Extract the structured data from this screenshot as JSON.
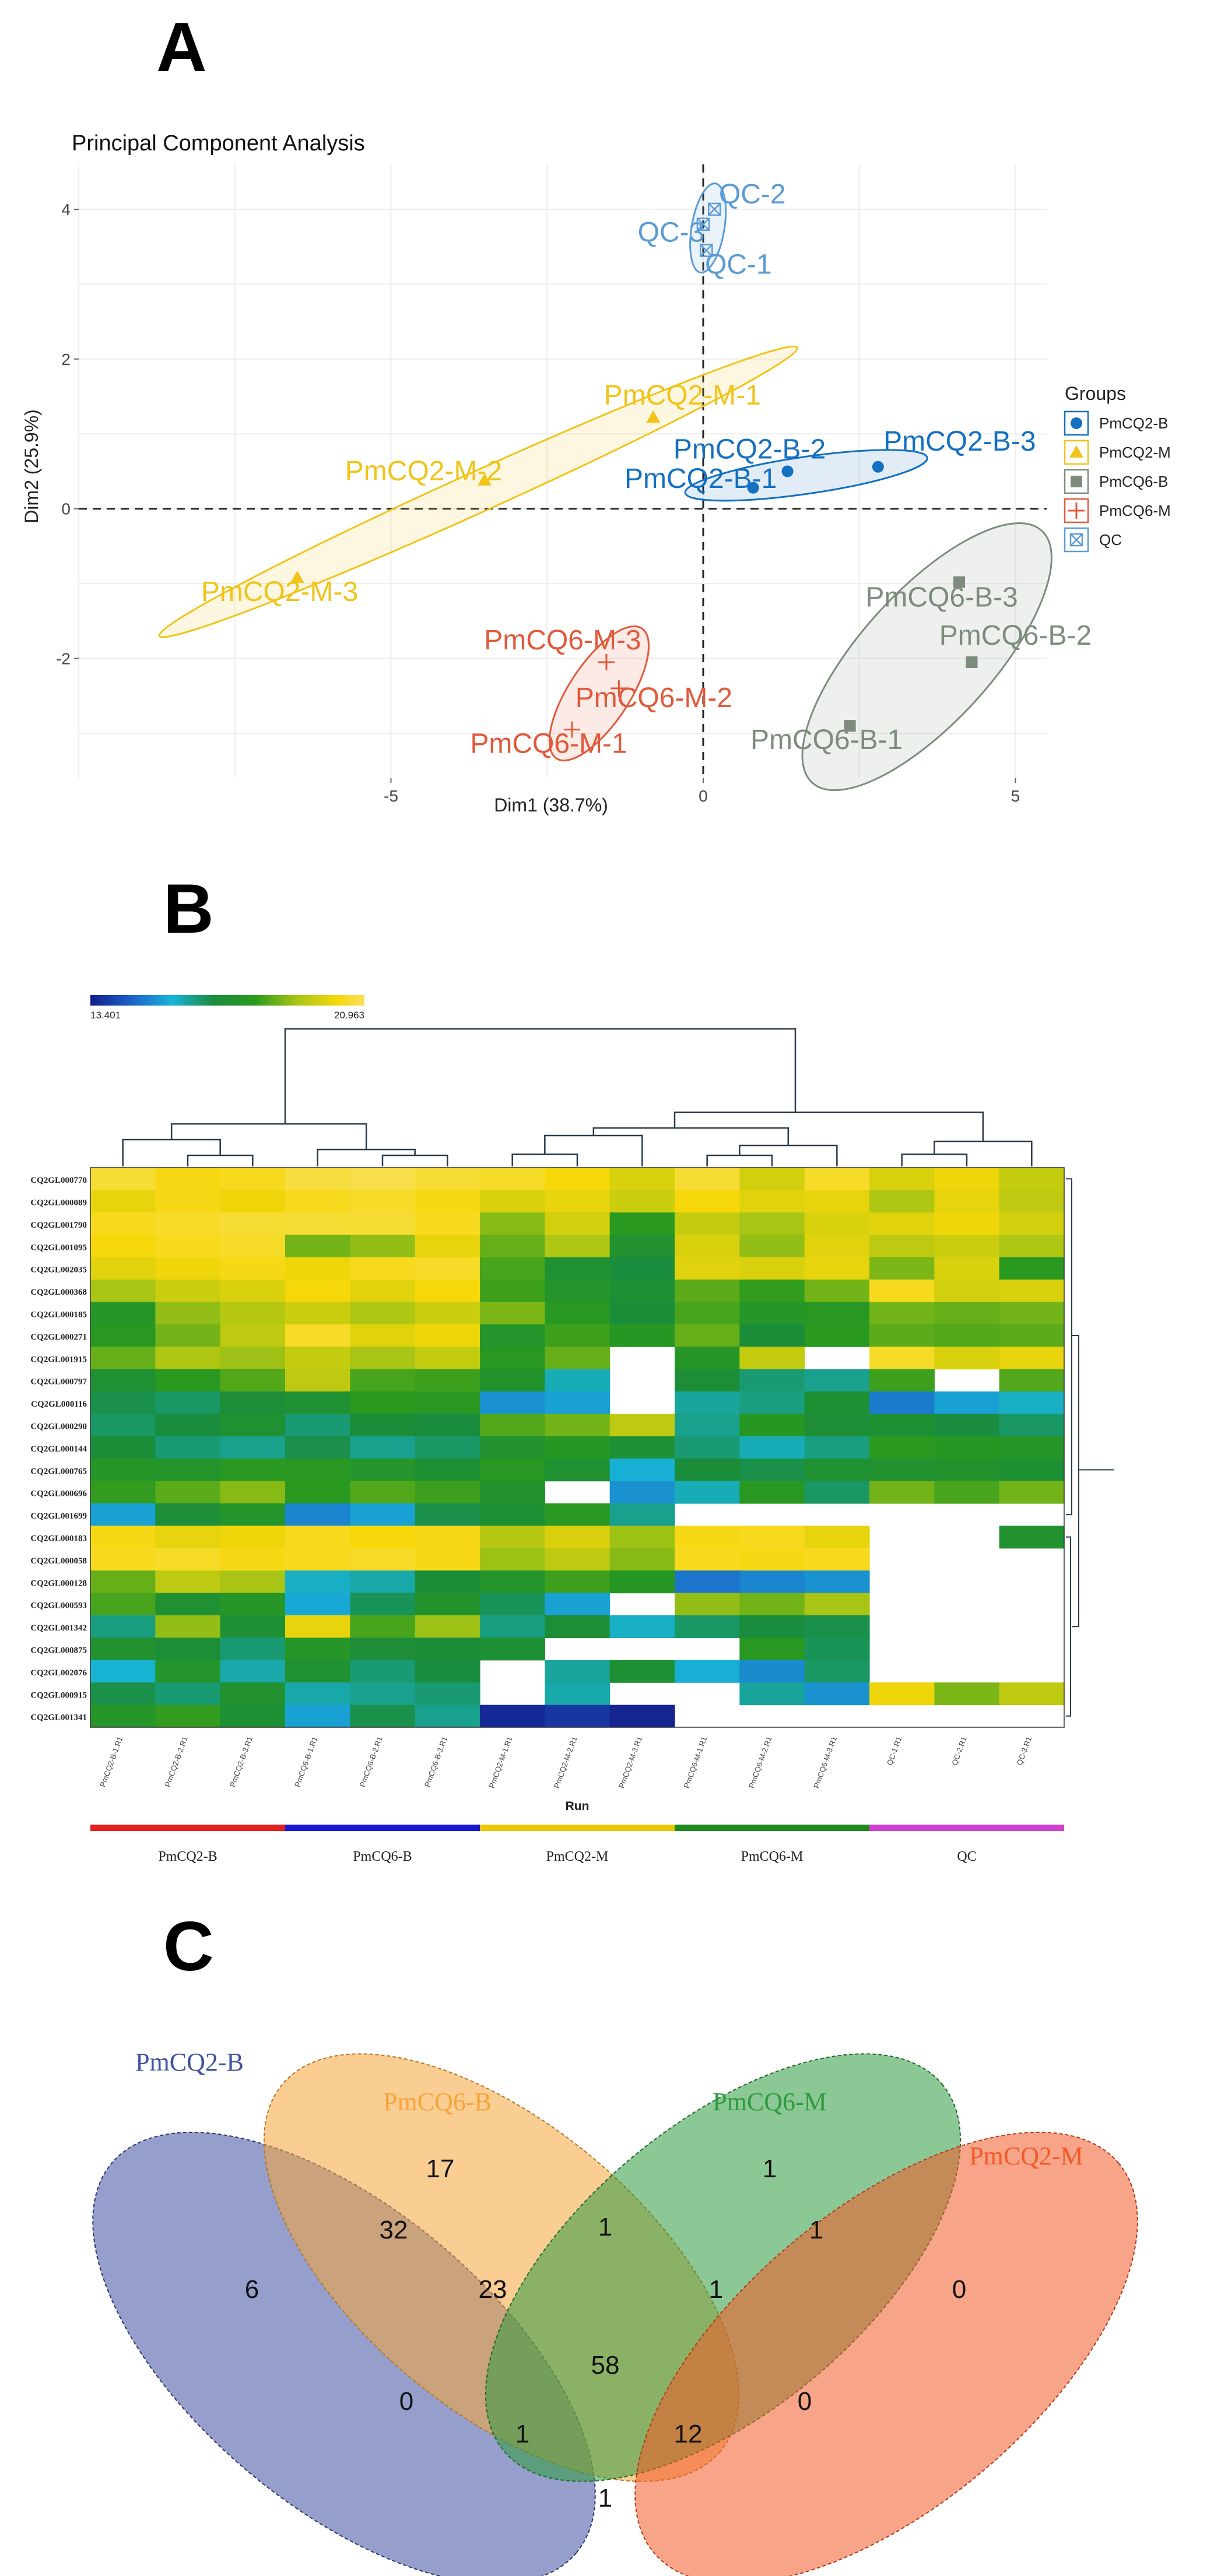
{
  "panel_letters": {
    "a": "A",
    "b": "B",
    "c": "C"
  },
  "chart_data": [
    {
      "type": "scatter",
      "title": "Principal Component Analysis",
      "xlabel": "Dim1 (38.7%)",
      "ylabel": "Dim2 (25.9%)",
      "xlim": [
        -10,
        5.5
      ],
      "ylim": [
        -3.6,
        4.6
      ],
      "xticks": [
        -5,
        0,
        5
      ],
      "yticks": [
        -2,
        0,
        2,
        4
      ],
      "legend_title": "Groups",
      "legend_position": "right",
      "series": [
        {
          "name": "PmCQ2-B",
          "color": "#1470C0",
          "marker": "circle",
          "points": [
            {
              "label": "PmCQ2-B-1",
              "x": 0.8,
              "y": 0.28
            },
            {
              "label": "PmCQ2-B-2",
              "x": 1.35,
              "y": 0.5
            },
            {
              "label": "PmCQ2-B-3",
              "x": 2.8,
              "y": 0.56
            }
          ]
        },
        {
          "name": "PmCQ2-M",
          "color": "#F0C419",
          "marker": "triangle",
          "points": [
            {
              "label": "PmCQ2-M-1",
              "x": -0.8,
              "y": 1.22
            },
            {
              "label": "PmCQ2-M-2",
              "x": -3.5,
              "y": 0.38
            },
            {
              "label": "PmCQ2-M-3",
              "x": -6.5,
              "y": -0.92
            }
          ]
        },
        {
          "name": "PmCQ6-B",
          "color": "#7D8C7D",
          "marker": "square",
          "points": [
            {
              "label": "PmCQ6-B-1",
              "x": 2.35,
              "y": -2.9
            },
            {
              "label": "PmCQ6-B-2",
              "x": 4.3,
              "y": -2.05
            },
            {
              "label": "PmCQ6-B-3",
              "x": 4.1,
              "y": -0.98
            }
          ]
        },
        {
          "name": "PmCQ6-M",
          "color": "#E05A3C",
          "marker": "plus",
          "points": [
            {
              "label": "PmCQ6-M-1",
              "x": -2.1,
              "y": -2.95
            },
            {
              "label": "PmCQ6-M-2",
              "x": -1.35,
              "y": -2.4
            },
            {
              "label": "PmCQ6-M-3",
              "x": -1.55,
              "y": -2.05
            }
          ]
        },
        {
          "name": "QC",
          "color": "#5B9BD5",
          "marker": "boxx",
          "points": [
            {
              "label": "QC-1",
              "x": 0.05,
              "y": 3.45
            },
            {
              "label": "QC-2",
              "x": 0.18,
              "y": 4.0
            },
            {
              "label": "QC-3",
              "x": 0.0,
              "y": 3.8
            }
          ]
        }
      ]
    },
    {
      "type": "heatmap",
      "color_min": "13.401",
      "color_max": "20.963",
      "xlabel": "Run",
      "columns": [
        "PmCQ2-B-1.R1",
        "PmCQ2-B-2.R1",
        "PmCQ2-B-3.R1",
        "PmCQ6-B-1.R1",
        "PmCQ6-B-2.R1",
        "PmCQ6-B-3.R1",
        "PmCQ2-M-1.R1",
        "PmCQ2-M-2.R1",
        "PmCQ2-M-3.R1",
        "PmCQ6-M-1.R1",
        "PmCQ6-M-2.R1",
        "PmCQ6-M-3.R1",
        "QC-1.R1",
        "QC-2.R1",
        "QC-3.R1"
      ],
      "rows": [
        "CQ2GL000770",
        "CQ2GL000089",
        "CQ2GL001790",
        "CQ2GL001095",
        "CQ2GL002035",
        "CQ2GL000368",
        "CQ2GL000185",
        "CQ2GL000271",
        "CQ2GL001915",
        "CQ2GL000797",
        "CQ2GL000116",
        "CQ2GL000290",
        "CQ2GL000144",
        "CQ2GL000765",
        "CQ2GL000696",
        "CQ2GL001699",
        "CQ2GL000183",
        "CQ2GL000058",
        "CQ2GL000128",
        "CQ2GL000593",
        "CQ2GL001342",
        "CQ2GL000875",
        "CQ2GL002076",
        "CQ2GL000915",
        "CQ2GL001341"
      ],
      "groups": [
        {
          "label": "PmCQ2-B",
          "color": "#E02020"
        },
        {
          "label": "PmCQ6-B",
          "color": "#1A1ACC"
        },
        {
          "label": "PmCQ2-M",
          "color": "#E8C800"
        },
        {
          "label": "PmCQ6-M",
          "color": "#1E8C1E"
        },
        {
          "label": "QC",
          "color": "#D040D0"
        }
      ],
      "values": [
        [
          20.6,
          20.3,
          20.4,
          20.7,
          20.8,
          20.6,
          20.5,
          20.2,
          19.8,
          20.6,
          19.7,
          20.5,
          19.8,
          20.1,
          19.5
        ],
        [
          20.0,
          20.3,
          20.1,
          20.4,
          20.5,
          20.3,
          19.8,
          20.0,
          19.6,
          20.2,
          19.9,
          20.0,
          19.2,
          20.0,
          19.4
        ],
        [
          20.4,
          20.5,
          20.6,
          20.6,
          20.6,
          20.4,
          18.8,
          19.7,
          17.9,
          19.5,
          19.1,
          19.8,
          19.9,
          20.1,
          19.7
        ],
        [
          20.2,
          20.4,
          20.5,
          18.6,
          18.9,
          20.0,
          18.5,
          19.2,
          17.3,
          19.8,
          18.9,
          19.9,
          19.4,
          19.6,
          19.2
        ],
        [
          19.9,
          20.1,
          20.3,
          20.1,
          20.4,
          20.5,
          18.2,
          17.2,
          16.8,
          19.9,
          19.8,
          20.0,
          18.7,
          19.8,
          17.9
        ],
        [
          19.1,
          19.6,
          19.8,
          20.2,
          19.9,
          20.2,
          18.1,
          17.5,
          17.1,
          18.4,
          18.0,
          18.6,
          20.4,
          19.7,
          19.8
        ],
        [
          17.6,
          18.9,
          19.3,
          19.6,
          19.2,
          19.6,
          18.7,
          17.8,
          16.9,
          18.2,
          17.6,
          17.8,
          18.6,
          18.5,
          18.6
        ],
        [
          17.8,
          18.6,
          19.4,
          20.5,
          19.9,
          20.1,
          17.5,
          18.1,
          17.7,
          18.5,
          16.9,
          17.9,
          18.4,
          18.3,
          18.4
        ],
        [
          18.5,
          19.2,
          19.0,
          19.5,
          19.1,
          19.5,
          17.8,
          18.5,
          null,
          17.6,
          19.5,
          null,
          20.5,
          19.8,
          20.0
        ],
        [
          17.2,
          17.9,
          18.3,
          19.4,
          18.2,
          18.1,
          17.4,
          15.9,
          null,
          17.0,
          16.4,
          16.2,
          18.1,
          null,
          18.3
        ],
        [
          16.7,
          16.5,
          17.0,
          17.2,
          17.9,
          17.8,
          15.2,
          15.4,
          null,
          16.1,
          16.3,
          17.1,
          14.9,
          15.4,
          15.8
        ],
        [
          16.5,
          16.8,
          17.2,
          16.4,
          16.9,
          16.8,
          18.3,
          18.6,
          19.4,
          16.2,
          17.7,
          17.0,
          17.1,
          16.8,
          16.5
        ],
        [
          16.9,
          16.4,
          16.2,
          16.7,
          16.2,
          16.5,
          17.3,
          17.7,
          17.1,
          16.4,
          15.9,
          16.3,
          17.9,
          17.7,
          17.6
        ],
        [
          17.6,
          17.5,
          17.8,
          17.8,
          17.5,
          17.1,
          17.8,
          17.2,
          15.6,
          16.9,
          16.7,
          17.2,
          17.3,
          17.4,
          17.1
        ],
        [
          18.0,
          18.4,
          18.8,
          17.9,
          18.3,
          18.1,
          17.4,
          null,
          15.2,
          15.9,
          17.8,
          16.5,
          18.6,
          18.2,
          18.6
        ],
        [
          15.4,
          17.0,
          17.5,
          15.0,
          15.4,
          16.7,
          17.1,
          17.8,
          16.2,
          null,
          null,
          null,
          null,
          null,
          null
        ],
        [
          20.3,
          20.0,
          20.1,
          20.4,
          20.2,
          20.3,
          19.3,
          19.8,
          19.0,
          20.3,
          20.4,
          20.0,
          null,
          null,
          17.3
        ],
        [
          20.4,
          20.5,
          20.3,
          20.4,
          20.5,
          20.3,
          19.0,
          19.4,
          18.8,
          20.4,
          20.3,
          20.4,
          null,
          null,
          null
        ],
        [
          18.5,
          19.4,
          19.1,
          15.8,
          16.0,
          16.9,
          17.5,
          18.1,
          17.7,
          14.8,
          15.0,
          15.2,
          null,
          null,
          null
        ],
        [
          18.2,
          17.2,
          17.6,
          15.5,
          16.6,
          17.4,
          16.6,
          15.4,
          null,
          18.9,
          18.6,
          19.1,
          null,
          null,
          null
        ],
        [
          16.3,
          18.9,
          17.1,
          20.0,
          18.2,
          19.0,
          16.3,
          17.0,
          15.8,
          16.5,
          16.8,
          16.7,
          null,
          null,
          null
        ],
        [
          17.3,
          17.0,
          16.4,
          17.6,
          17.0,
          16.9,
          17.1,
          null,
          null,
          null,
          17.8,
          16.6,
          null,
          null,
          null
        ],
        [
          15.7,
          17.5,
          16.0,
          17.2,
          16.4,
          16.8,
          null,
          16.1,
          17.1,
          15.6,
          15.1,
          16.5,
          null,
          null,
          null
        ],
        [
          16.7,
          16.4,
          17.3,
          16.0,
          16.2,
          16.4,
          null,
          16.0,
          null,
          null,
          16.1,
          15.2,
          20.1,
          18.7,
          19.4
        ],
        [
          17.6,
          18.0,
          17.1,
          15.4,
          16.7,
          16.2,
          13.6,
          13.8,
          13.5,
          null,
          null,
          null,
          null,
          null,
          null
        ]
      ]
    },
    {
      "type": "venn",
      "sets": [
        {
          "name": "PmCQ2-B",
          "color": "#3F51A0"
        },
        {
          "name": "PmCQ6-B",
          "color": "#F6A43A"
        },
        {
          "name": "PmCQ6-M",
          "color": "#2E9A40"
        },
        {
          "name": "PmCQ2-M",
          "color": "#F25A28"
        }
      ],
      "regions": [
        {
          "sets": "PmCQ2-B only",
          "count": "6"
        },
        {
          "sets": "PmCQ6-B only",
          "count": "17"
        },
        {
          "sets": "PmCQ6-M only",
          "count": "1"
        },
        {
          "sets": "PmCQ2-M only",
          "count": "0"
        },
        {
          "sets": "PmCQ2-B & PmCQ6-B",
          "count": "32"
        },
        {
          "sets": "PmCQ6-B & PmCQ6-M",
          "count": "1"
        },
        {
          "sets": "PmCQ6-M & PmCQ2-M",
          "count": "1"
        },
        {
          "sets": "PmCQ2-B & PmCQ6-B & PmCQ6-M",
          "count": "23"
        },
        {
          "sets": "PmCQ6-B & PmCQ6-M & PmCQ2-M",
          "count": "1"
        },
        {
          "sets": "all four",
          "count": "58"
        },
        {
          "sets": "PmCQ2-B & PmCQ6-M",
          "count": "0"
        },
        {
          "sets": "PmCQ6-B & PmCQ2-M",
          "count": "0"
        },
        {
          "sets": "PmCQ2-B & PmCQ6-M & PmCQ2-M",
          "count": "1"
        },
        {
          "sets": "PmCQ2-B & PmCQ6-B & PmCQ2-M",
          "count": "12"
        },
        {
          "sets": "PmCQ2-B & PmCQ2-M",
          "count": "1"
        }
      ]
    }
  ]
}
